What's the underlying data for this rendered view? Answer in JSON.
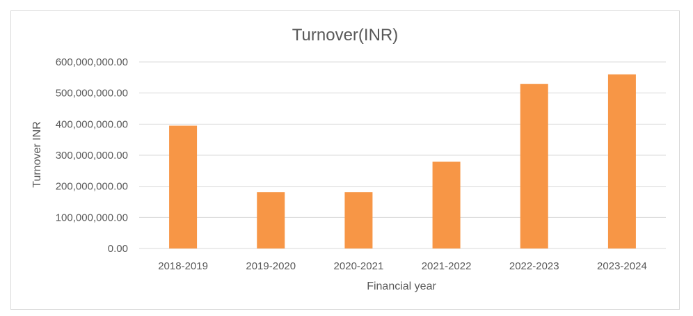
{
  "chart_data": {
    "type": "bar",
    "title": "Turnover(INR)",
    "xlabel": "Financial year",
    "ylabel": "Turnover INR",
    "categories": [
      "2018-2019",
      "2019-2020",
      "2020-2021",
      "2021-2022",
      "2022-2023",
      "2023-2024"
    ],
    "values": [
      395000000,
      181000000,
      181000000,
      279000000,
      529000000,
      560000000
    ],
    "ylim": [
      0,
      600000000
    ],
    "yticks": [
      0,
      100000000,
      200000000,
      300000000,
      400000000,
      500000000,
      600000000
    ],
    "ytick_labels": [
      "0.00",
      "100,000,000.00",
      "200,000,000.00",
      "300,000,000.00",
      "400,000,000.00",
      "500,000,000.00",
      "600,000,000.00"
    ],
    "grid": true,
    "legend": "none",
    "bar_color": "#F79646"
  }
}
